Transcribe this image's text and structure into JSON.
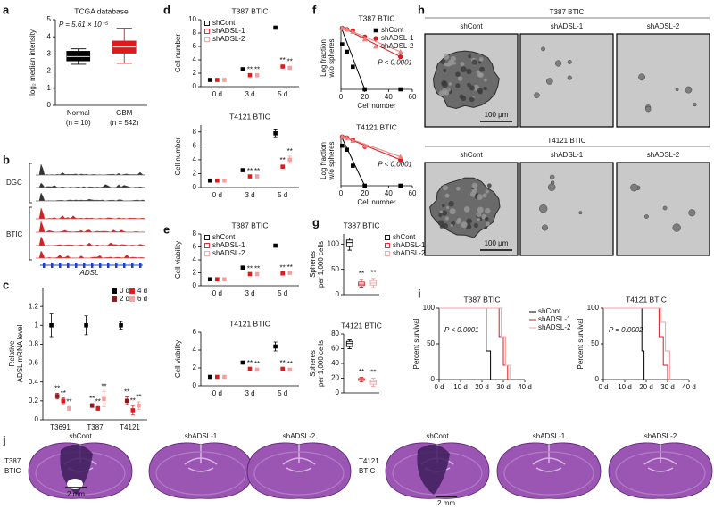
{
  "panel_letters": [
    "a",
    "b",
    "c",
    "d",
    "e",
    "f",
    "g",
    "h",
    "i",
    "j"
  ],
  "tracks": {
    "rows": [
      "DGC",
      "BTIC"
    ],
    "gene": "ADSL"
  },
  "micrographs": {
    "groups": [
      {
        "title": "T387 BTIC",
        "columns": [
          "shCont",
          "shADSL-1",
          "shADSL-2"
        ],
        "scale_bar": "100 μm"
      },
      {
        "title": "T4121 BTIC",
        "columns": [
          "shCont",
          "shADSL-1",
          "shADSL-2"
        ],
        "scale_bar": "100 μm"
      }
    ]
  },
  "sections": {
    "groups": [
      {
        "label": [
          "T387",
          "BTIC"
        ],
        "columns": [
          "shCont",
          "shADSL-1",
          "shADSL-2"
        ],
        "scale_bar": "2 mm"
      },
      {
        "label": [
          "T4121",
          "BTIC"
        ],
        "columns": [
          "shCont",
          "shADSL-1",
          "shADSL-2"
        ],
        "scale_bar": "2 mm"
      }
    ]
  },
  "chart_data": [
    {
      "type": "box",
      "title": "TCGA database",
      "annotation": "P = 5.61 × 10⁻⁵",
      "ylabel": "log₂ median intensity",
      "categories": [
        "Normal",
        "GBM"
      ],
      "category_notes": [
        "(n = 10)",
        "(n = 542)"
      ],
      "ylim": [
        0,
        5
      ],
      "yticks": [
        0,
        1,
        2,
        3,
        4,
        5
      ],
      "box_fill": true,
      "series": [
        {
          "color": "#000000",
          "box": {
            "low": 2.4,
            "q1": 2.6,
            "median": 2.85,
            "q3": 3.15,
            "high": 3.3
          }
        },
        {
          "color": "#e0191b",
          "box": {
            "low": 2.45,
            "q1": 3.05,
            "median": 3.4,
            "q3": 3.75,
            "high": 4.5
          }
        }
      ]
    },
    {
      "type": "dot",
      "ylabel": [
        "Relative",
        "ADSL mRNA level"
      ],
      "categories": [
        "T3691",
        "T387",
        "T4121"
      ],
      "ylim": [
        0,
        1.4
      ],
      "yticks": [
        0,
        0.2,
        0.4,
        0.6,
        0.8,
        1,
        1.2
      ],
      "legend": "upper right",
      "series": [
        {
          "name": "0 d",
          "color": "#000000",
          "values": [
            1.0,
            1.0,
            1.0
          ],
          "errors": [
            0.12,
            0.1,
            0.04
          ]
        },
        {
          "name": "2 d",
          "color": "#8b1a1a",
          "values": [
            0.25,
            0.15,
            0.2
          ],
          "errors": [
            0.03,
            0.02,
            0.04
          ],
          "labels": [
            "**",
            "**",
            "**"
          ]
        },
        {
          "name": "4 d",
          "color": "#e0191b",
          "values": [
            0.2,
            0.12,
            0.1
          ],
          "errors": [
            0.03,
            0.02,
            0.05
          ],
          "labels": [
            "**",
            "**",
            "**"
          ]
        },
        {
          "name": "6 d",
          "color": "#f4a0a0",
          "values": [
            0.12,
            0.22,
            0.15
          ],
          "errors": [
            0.02,
            0.08,
            0.04
          ],
          "labels": [
            "**",
            "**",
            "**"
          ]
        }
      ]
    },
    {
      "type": "dot",
      "title": "T387 BTIC",
      "ylabel": "Cell number",
      "categories": [
        "0 d",
        "3 d",
        "5 d"
      ],
      "ylim": [
        0,
        10
      ],
      "yticks": [
        0,
        2,
        4,
        6,
        8,
        10
      ],
      "legend": "upper left",
      "series": [
        {
          "name": "shCont",
          "color": "#000000",
          "values": [
            1,
            2.6,
            8.8
          ],
          "errors": [
            0.05,
            0.1,
            0.2
          ]
        },
        {
          "name": "shADSL-1",
          "color": "#e0191b",
          "values": [
            1,
            1.7,
            3.0
          ],
          "errors": [
            0.05,
            0.1,
            0.2
          ],
          "labels": [
            null,
            "**",
            "**"
          ]
        },
        {
          "name": "shADSL-2",
          "color": "#f4a0a0",
          "values": [
            1,
            1.7,
            2.8
          ],
          "errors": [
            0.05,
            0.1,
            0.2
          ],
          "labels": [
            null,
            "**",
            "**"
          ]
        }
      ]
    },
    {
      "type": "dot",
      "title": "T4121 BTIC",
      "ylabel": "Cell number",
      "categories": [
        "0 d",
        "3 d",
        "5 d"
      ],
      "ylim": [
        0,
        9
      ],
      "yticks": [
        0,
        2,
        4,
        6,
        8
      ],
      "series": [
        {
          "color": "#000000",
          "values": [
            1,
            2.5,
            7.8
          ],
          "errors": [
            0.05,
            0.15,
            0.5
          ]
        },
        {
          "color": "#e0191b",
          "values": [
            1,
            1.6,
            3.0
          ],
          "errors": [
            0.05,
            0.1,
            0.2
          ],
          "labels": [
            null,
            "**",
            "**"
          ]
        },
        {
          "color": "#f4a0a0",
          "values": [
            1,
            1.6,
            4.0
          ],
          "errors": [
            0.05,
            0.1,
            0.5
          ],
          "labels": [
            null,
            "**",
            "**"
          ]
        }
      ]
    },
    {
      "type": "dot",
      "title": "T387 BTIC",
      "ylabel": "Cell viability",
      "categories": [
        "0 d",
        "3 d",
        "5 d"
      ],
      "ylim": [
        0,
        8
      ],
      "yticks": [
        0,
        2,
        4,
        6,
        8
      ],
      "legend": "upper left",
      "series": [
        {
          "name": "shCont",
          "color": "#000000",
          "values": [
            1,
            2.8,
            6.2
          ],
          "errors": [
            0.1,
            0.15,
            0.2
          ]
        },
        {
          "name": "shADSL-1",
          "color": "#e0191b",
          "values": [
            1,
            1.8,
            1.9
          ],
          "errors": [
            0.1,
            0.1,
            0.1
          ],
          "labels": [
            null,
            "**",
            "**"
          ]
        },
        {
          "name": "shADSL-2",
          "color": "#f4a0a0",
          "values": [
            1,
            1.8,
            2.0
          ],
          "errors": [
            0.1,
            0.1,
            0.1
          ],
          "labels": [
            null,
            "**",
            "**"
          ]
        }
      ]
    },
    {
      "type": "dot",
      "title": "T4121 BTIC",
      "ylabel": "Cell viability",
      "categories": [
        "0 d",
        "3 d",
        "5 d"
      ],
      "ylim": [
        0,
        6
      ],
      "yticks": [
        0,
        2,
        4,
        6
      ],
      "series": [
        {
          "color": "#000000",
          "values": [
            1,
            2.6,
            4.4
          ],
          "errors": [
            0.1,
            0.15,
            0.5
          ]
        },
        {
          "color": "#e0191b",
          "values": [
            1,
            1.9,
            1.9
          ],
          "errors": [
            0.1,
            0.1,
            0.1
          ],
          "labels": [
            null,
            "**",
            "**"
          ]
        },
        {
          "color": "#f4a0a0",
          "values": [
            1,
            1.8,
            1.8
          ],
          "errors": [
            0.1,
            0.1,
            0.1
          ],
          "labels": [
            null,
            "**",
            "**"
          ]
        }
      ]
    },
    {
      "type": "scatter",
      "title": "T387 BTIC",
      "annotation": "P < 0.0001",
      "xlabel": "Cell number",
      "ylabel": [
        "Log fraction",
        "w/o spheres"
      ],
      "xlim": [
        0,
        60
      ],
      "xticks": [
        0,
        20,
        40,
        60
      ],
      "ylim": [
        -2.5,
        0
      ],
      "legend": "upper right",
      "series": [
        {
          "name": "shCont",
          "color": "#000000",
          "marker": "square",
          "x": [
            1,
            5,
            10,
            20,
            50
          ],
          "values": [
            -0.7,
            -1.0,
            -1.6,
            -2.5,
            -2.5
          ],
          "fit": {
            "x": [
              0,
              20
            ],
            "values": [
              0,
              -2.5
            ]
          }
        },
        {
          "name": "shADSL-1",
          "color": "#e0191b",
          "marker": "circle",
          "x": [
            1,
            5,
            10,
            20,
            50
          ],
          "values": [
            -0.05,
            -0.1,
            -0.15,
            -0.4,
            -1.2
          ],
          "fit": {
            "x": [
              0,
              50
            ],
            "values": [
              0,
              -1.2
            ]
          }
        },
        {
          "name": "shADSL-2",
          "color": "#f08080",
          "marker": "triangle",
          "x": [
            1,
            5,
            10,
            20,
            50
          ],
          "values": [
            -0.05,
            -0.1,
            -0.2,
            -0.5,
            -1.0
          ],
          "fit": {
            "x": [
              0,
              50
            ],
            "values": [
              0,
              -1.0
            ]
          }
        }
      ]
    },
    {
      "type": "scatter",
      "title": "T4121 BTIC",
      "annotation": "P < 0.0001",
      "xlabel": "Cell number",
      "ylabel": [
        "Log fraction",
        "w/o spheres"
      ],
      "xlim": [
        0,
        60
      ],
      "xticks": [
        0,
        20,
        40,
        60
      ],
      "ylim": [
        -2.5,
        0
      ],
      "series": [
        {
          "color": "#000000",
          "marker": "square",
          "x": [
            1,
            5,
            10,
            20,
            50
          ],
          "values": [
            -0.5,
            -0.7,
            -1.5,
            -2.5,
            -2.5
          ],
          "fit": {
            "x": [
              0,
              20
            ],
            "values": [
              0,
              -2.5
            ]
          }
        },
        {
          "color": "#e0191b",
          "marker": "circle",
          "x": [
            1,
            5,
            10,
            20,
            50
          ],
          "values": [
            -0.05,
            -0.1,
            -0.2,
            -0.55,
            -1.2
          ],
          "fit": {
            "x": [
              0,
              50
            ],
            "values": [
              0,
              -1.2
            ]
          }
        },
        {
          "color": "#f08080",
          "marker": "triangle",
          "x": [
            1,
            5,
            10,
            20,
            50
          ],
          "values": [
            -0.05,
            -0.1,
            -0.25,
            -0.5,
            -1.05
          ],
          "fit": {
            "x": [
              0,
              50
            ],
            "values": [
              0,
              -1.05
            ]
          }
        }
      ]
    },
    {
      "type": "box",
      "title": "T387 BTIC",
      "ylabel": [
        "Spheres",
        "per 1,000 cells"
      ],
      "ylim": [
        0,
        120
      ],
      "yticks": [
        0,
        50,
        100
      ],
      "legend": "right",
      "series": [
        {
          "name": "shCont",
          "color": "#000000",
          "box": {
            "low": 88,
            "q1": 95,
            "median": 103,
            "q3": 108,
            "high": 112
          }
        },
        {
          "name": "shADSL-1",
          "color": "#e0191b",
          "box": {
            "low": 15,
            "q1": 18,
            "median": 21,
            "q3": 25,
            "high": 30
          },
          "label": "**"
        },
        {
          "name": "shADSL-2",
          "color": "#f4a0a0",
          "box": {
            "low": 14,
            "q1": 19,
            "median": 23,
            "q3": 28,
            "high": 32
          },
          "label": "**"
        }
      ]
    },
    {
      "type": "box",
      "title": "T4121 BTIC",
      "ylabel": [
        "Spheres",
        "per 1,000 cells"
      ],
      "ylim": [
        0,
        80
      ],
      "yticks": [
        0,
        20,
        40,
        60,
        80
      ],
      "series": [
        {
          "color": "#000000",
          "box": {
            "low": 60,
            "q1": 63,
            "median": 67,
            "q3": 70,
            "high": 72
          }
        },
        {
          "color": "#e0191b",
          "box": {
            "low": 15,
            "q1": 17,
            "median": 18,
            "q3": 19.5,
            "high": 21
          },
          "label": "**"
        },
        {
          "color": "#f4a0a0",
          "box": {
            "low": 9,
            "q1": 12,
            "median": 15,
            "q3": 17,
            "high": 20
          },
          "label": "**"
        }
      ]
    },
    {
      "type": "step",
      "title": "T387 BTIC",
      "annotation": "P < 0.0001",
      "ylabel": "Percent survival",
      "xlim": [
        0,
        40
      ],
      "xticks": [
        {
          "value": 0,
          "label": "0 d"
        },
        {
          "value": 10,
          "label": "10 d"
        },
        {
          "value": 20,
          "label": "20 d"
        },
        {
          "value": 30,
          "label": "30 d"
        },
        {
          "value": 40,
          "label": "40 d"
        }
      ],
      "ylim": [
        0,
        100
      ],
      "yticks": [
        0,
        50,
        100
      ],
      "legend": "right",
      "series": [
        {
          "name": "shCont",
          "color": "#000000",
          "x": [
            0,
            22,
            24
          ],
          "values": [
            100,
            40,
            0
          ]
        },
        {
          "name": "shADSL-1",
          "color": "#e0191b",
          "x": [
            0,
            28,
            30,
            32
          ],
          "values": [
            100,
            60,
            20,
            0
          ]
        },
        {
          "name": "shADSL-2",
          "color": "#f4a0a0",
          "x": [
            0,
            29,
            31,
            33
          ],
          "values": [
            100,
            60,
            20,
            0
          ]
        }
      ]
    },
    {
      "type": "step",
      "title": "T4121 BTIC",
      "annotation": "P = 0.0002",
      "ylabel": "Percent survival",
      "xlim": [
        0,
        40
      ],
      "xticks": [
        {
          "value": 0,
          "label": "0 d"
        },
        {
          "value": 10,
          "label": "10 d"
        },
        {
          "value": 20,
          "label": "20 d"
        },
        {
          "value": 30,
          "label": "30 d"
        },
        {
          "value": 40,
          "label": "40 d"
        }
      ],
      "ylim": [
        0,
        100
      ],
      "yticks": [
        0,
        50,
        100
      ],
      "series": [
        {
          "color": "#000000",
          "x": [
            0,
            18,
            19
          ],
          "values": [
            100,
            40,
            0
          ]
        },
        {
          "color": "#e0191b",
          "x": [
            0,
            26,
            28,
            30
          ],
          "values": [
            100,
            60,
            20,
            0
          ]
        },
        {
          "color": "#f4a0a0",
          "x": [
            0,
            27,
            29,
            31
          ],
          "values": [
            100,
            80,
            40,
            0
          ]
        }
      ]
    }
  ]
}
